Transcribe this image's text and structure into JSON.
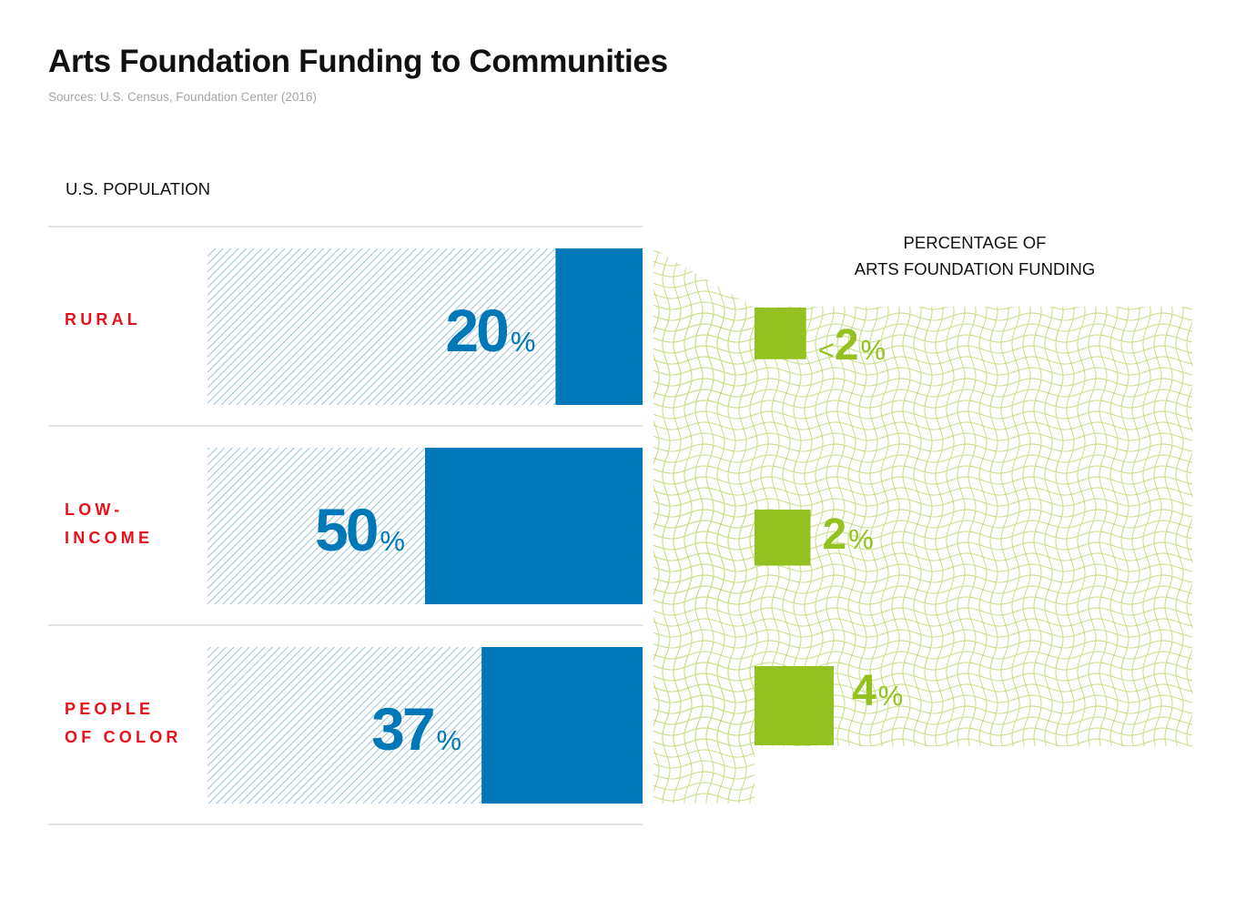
{
  "title": "Arts Foundation Funding to Communities",
  "source": "Sources: U.S. Census, Foundation Center (2016)",
  "colors": {
    "title": "#111111",
    "source": "#a6a6a6",
    "blue": "#0077b6",
    "hatch": "#9cc3d6",
    "red": "#e8101d",
    "green": "#94c11f",
    "mesh": "#c9df8c",
    "rule": "#d9d9d9",
    "label": "#111111"
  },
  "chart_data": {
    "type": "bar",
    "title": "Arts Foundation Funding to Communities",
    "left_heading": "U.S. POPULATION",
    "right_heading": [
      "PERCENTAGE OF",
      "ARTS FOUNDATION FUNDING"
    ],
    "categories": [
      {
        "label": [
          "RURAL"
        ],
        "population": 20,
        "population_label": "20",
        "funding": 1.7,
        "funding_label": "<2"
      },
      {
        "label": [
          "LOW-",
          "INCOME"
        ],
        "population": 50,
        "population_label": "50",
        "funding": 2,
        "funding_label": "2"
      },
      {
        "label": [
          "PEOPLE",
          "OF COLOR"
        ],
        "population": 37,
        "population_label": "37",
        "funding": 4,
        "funding_label": "4"
      }
    ],
    "series": [
      {
        "name": "U.S. Population",
        "unit": "%",
        "values": [
          20,
          50,
          37
        ]
      },
      {
        "name": "Percentage of Arts Foundation Funding",
        "unit": "%",
        "values": [
          1.7,
          2,
          4
        ]
      }
    ],
    "percent_symbol": "%",
    "population_range": [
      0,
      100
    ]
  }
}
